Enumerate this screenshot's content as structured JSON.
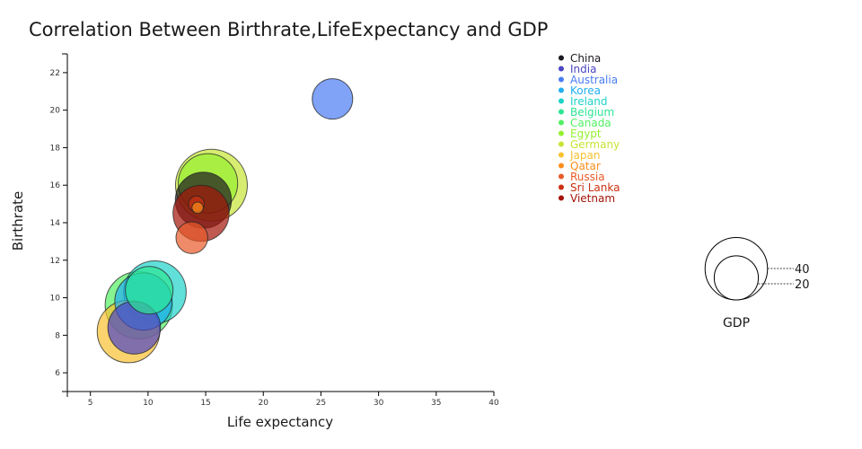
{
  "chart_data": {
    "type": "scatter",
    "subtype": "bubble",
    "title": "Correlation Between Birthrate,LifeExpectancy and GDP",
    "xlabel": "Life expectancy",
    "ylabel": "Birthrate",
    "xlim": [
      3,
      40
    ],
    "ylim": [
      5,
      23
    ],
    "xticks": [
      5,
      10,
      15,
      20,
      25,
      30,
      35,
      40
    ],
    "yticks": [
      6,
      8,
      10,
      12,
      14,
      16,
      18,
      20,
      22
    ],
    "grid": false,
    "legend_position": "top-right",
    "size_legend": {
      "title": "GDP",
      "values": [
        40,
        20
      ]
    },
    "series": [
      {
        "name": "China",
        "color": "#1c1820",
        "x": 14.8,
        "y": 15.2,
        "gdp": 25
      },
      {
        "name": "India",
        "color": "#4b45c4",
        "x": 8.8,
        "y": 8.4,
        "gdp": 22
      },
      {
        "name": "Australia",
        "color": "#4a7cf4",
        "x": 26.0,
        "y": 20.6,
        "gdp": 13
      },
      {
        "name": "Korea",
        "color": "#22aef0",
        "x": 9.6,
        "y": 9.8,
        "gdp": 26
      },
      {
        "name": "Ireland",
        "color": "#1ed2c9",
        "x": 10.6,
        "y": 10.3,
        "gdp": 31
      },
      {
        "name": "Belgium",
        "color": "#2de594",
        "x": 10.1,
        "y": 10.4,
        "gdp": 18
      },
      {
        "name": "Canada",
        "color": "#52f063",
        "x": 9.2,
        "y": 9.6,
        "gdp": 36
      },
      {
        "name": "Egypt",
        "color": "#96f030",
        "x": 15.2,
        "y": 16.1,
        "gdp": 28
      },
      {
        "name": "Germany",
        "color": "#c6e534",
        "x": 15.5,
        "y": 16.0,
        "gdp": 41
      },
      {
        "name": "Japan",
        "color": "#f8c131",
        "x": 8.3,
        "y": 8.2,
        "gdp": 31
      },
      {
        "name": "Qatar",
        "color": "#fa8f1c",
        "x": 14.3,
        "y": 14.8,
        "gdp": 1
      },
      {
        "name": "Russia",
        "color": "#e85a2a",
        "x": 13.8,
        "y": 13.2,
        "gdp": 8
      },
      {
        "name": "Sri Lanka",
        "color": "#c93011",
        "x": 14.2,
        "y": 15.0,
        "gdp": 2
      },
      {
        "name": "Vietnam",
        "color": "#a31409",
        "x": 14.6,
        "y": 14.5,
        "gdp": 25
      }
    ]
  }
}
